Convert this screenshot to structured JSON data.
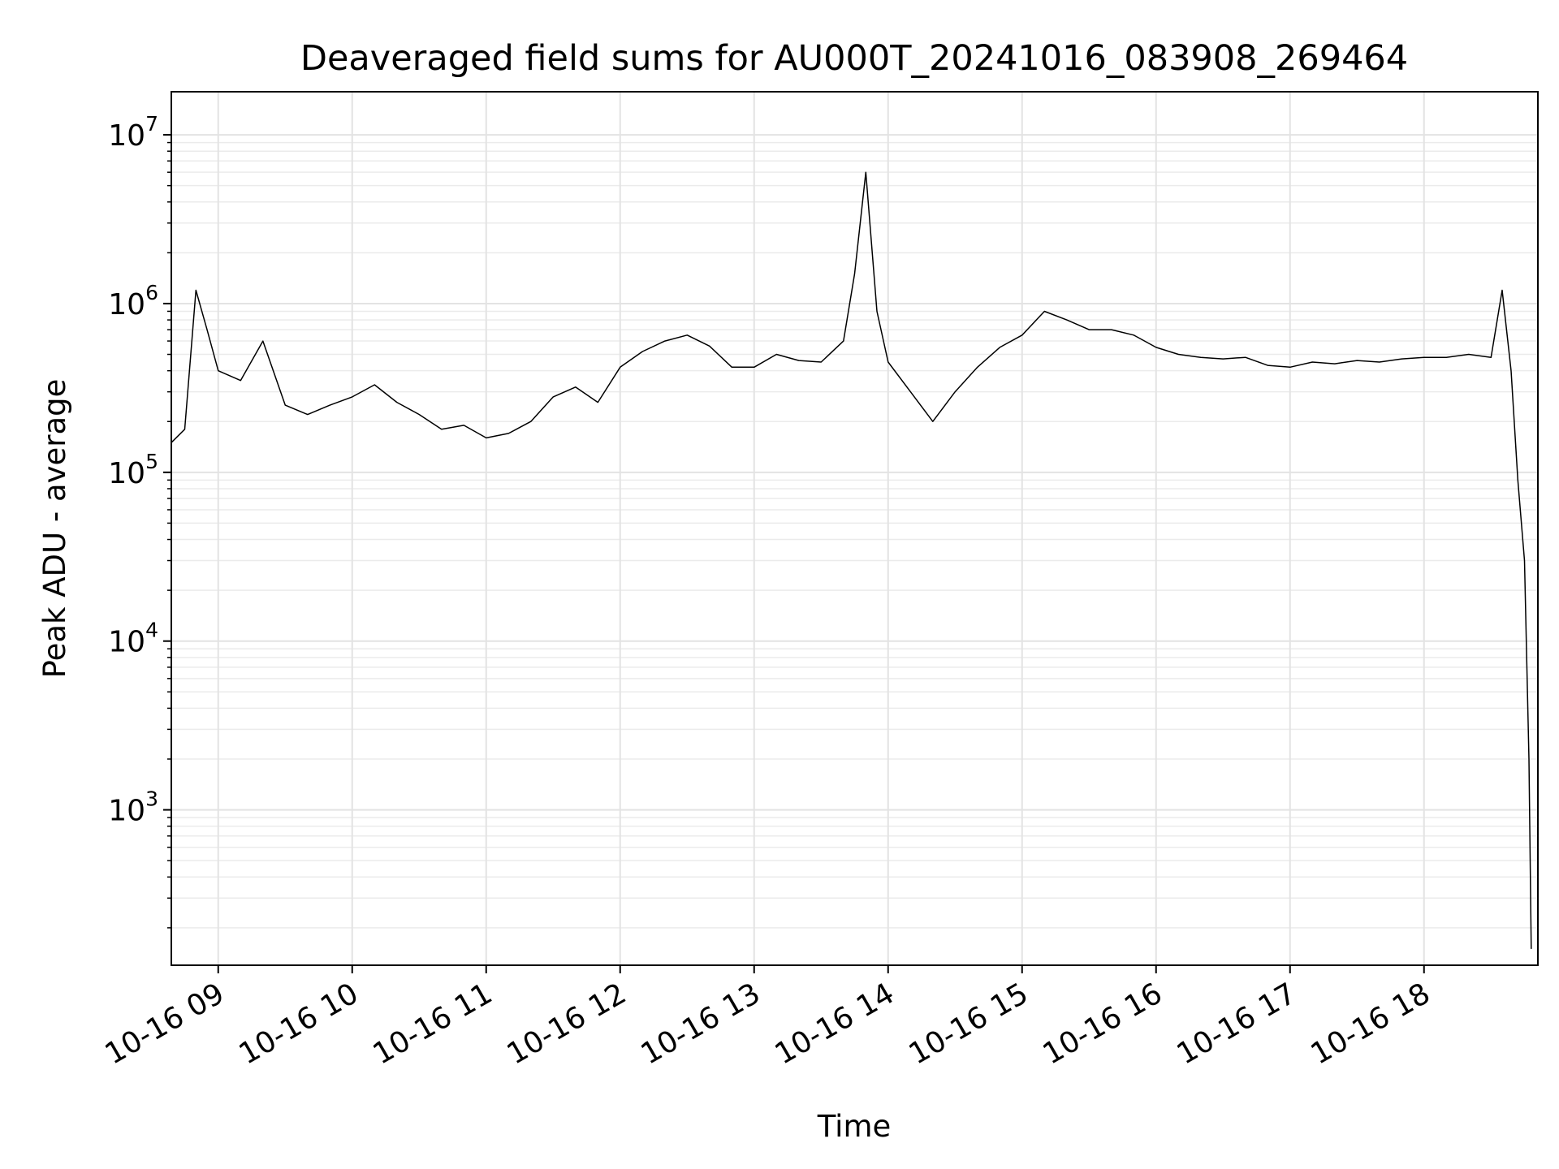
{
  "chart_data": {
    "type": "line",
    "title": "Deaveraged field sums for AU000T_20241016_083908_269464",
    "xlabel": "Time",
    "ylabel": "Peak ADU - average",
    "y_scale": "log",
    "ylim": [
      120,
      18000000
    ],
    "xlim": [
      "2024-10-16 08:39",
      "2024-10-16 18:51"
    ],
    "grid": true,
    "line_color": "#000000",
    "x_ticks": [
      {
        "value": "2024-10-16 09:00",
        "label": "10-16 09"
      },
      {
        "value": "2024-10-16 10:00",
        "label": "10-16 10"
      },
      {
        "value": "2024-10-16 11:00",
        "label": "10-16 11"
      },
      {
        "value": "2024-10-16 12:00",
        "label": "10-16 12"
      },
      {
        "value": "2024-10-16 13:00",
        "label": "10-16 13"
      },
      {
        "value": "2024-10-16 14:00",
        "label": "10-16 14"
      },
      {
        "value": "2024-10-16 15:00",
        "label": "10-16 15"
      },
      {
        "value": "2024-10-16 16:00",
        "label": "10-16 16"
      },
      {
        "value": "2024-10-16 17:00",
        "label": "10-16 17"
      },
      {
        "value": "2024-10-16 18:00",
        "label": "10-16 18"
      }
    ],
    "y_ticks": [
      {
        "value": 1000,
        "base": "10",
        "exp": "3"
      },
      {
        "value": 10000,
        "base": "10",
        "exp": "4"
      },
      {
        "value": 100000,
        "base": "10",
        "exp": "5"
      },
      {
        "value": 1000000,
        "base": "10",
        "exp": "6"
      },
      {
        "value": 10000000,
        "base": "10",
        "exp": "7"
      }
    ],
    "series": [
      {
        "x": [
          "2024-10-16 08:39",
          "2024-10-16 08:45",
          "2024-10-16 08:50",
          "2024-10-16 08:55",
          "2024-10-16 09:00",
          "2024-10-16 09:10",
          "2024-10-16 09:20",
          "2024-10-16 09:30",
          "2024-10-16 09:40",
          "2024-10-16 09:50",
          "2024-10-16 10:00",
          "2024-10-16 10:10",
          "2024-10-16 10:20",
          "2024-10-16 10:30",
          "2024-10-16 10:40",
          "2024-10-16 10:50",
          "2024-10-16 11:00",
          "2024-10-16 11:10",
          "2024-10-16 11:20",
          "2024-10-16 11:30",
          "2024-10-16 11:40",
          "2024-10-16 11:50",
          "2024-10-16 12:00",
          "2024-10-16 12:10",
          "2024-10-16 12:20",
          "2024-10-16 12:30",
          "2024-10-16 12:40",
          "2024-10-16 12:50",
          "2024-10-16 13:00",
          "2024-10-16 13:10",
          "2024-10-16 13:20",
          "2024-10-16 13:30",
          "2024-10-16 13:40",
          "2024-10-16 13:45",
          "2024-10-16 13:50",
          "2024-10-16 13:55",
          "2024-10-16 14:00",
          "2024-10-16 14:10",
          "2024-10-16 14:20",
          "2024-10-16 14:30",
          "2024-10-16 14:40",
          "2024-10-16 14:50",
          "2024-10-16 15:00",
          "2024-10-16 15:10",
          "2024-10-16 15:20",
          "2024-10-16 15:30",
          "2024-10-16 15:40",
          "2024-10-16 15:50",
          "2024-10-16 16:00",
          "2024-10-16 16:10",
          "2024-10-16 16:20",
          "2024-10-16 16:30",
          "2024-10-16 16:40",
          "2024-10-16 16:50",
          "2024-10-16 17:00",
          "2024-10-16 17:10",
          "2024-10-16 17:20",
          "2024-10-16 17:30",
          "2024-10-16 17:40",
          "2024-10-16 17:50",
          "2024-10-16 18:00",
          "2024-10-16 18:10",
          "2024-10-16 18:20",
          "2024-10-16 18:30",
          "2024-10-16 18:35",
          "2024-10-16 18:39",
          "2024-10-16 18:42",
          "2024-10-16 18:45",
          "2024-10-16 18:47",
          "2024-10-16 18:48"
        ],
        "y": [
          150000,
          180000,
          1200000,
          700000,
          400000,
          350000,
          600000,
          250000,
          220000,
          250000,
          280000,
          330000,
          260000,
          220000,
          180000,
          190000,
          160000,
          170000,
          200000,
          280000,
          320000,
          260000,
          420000,
          520000,
          600000,
          650000,
          560000,
          420000,
          420000,
          500000,
          460000,
          450000,
          600000,
          1500000,
          6000000,
          900000,
          450000,
          300000,
          200000,
          300000,
          420000,
          550000,
          650000,
          900000,
          800000,
          700000,
          700000,
          650000,
          550000,
          500000,
          480000,
          470000,
          480000,
          430000,
          420000,
          450000,
          440000,
          460000,
          450000,
          470000,
          480000,
          480000,
          500000,
          480000,
          1200000,
          400000,
          90000,
          30000,
          2000,
          150
        ]
      }
    ]
  }
}
